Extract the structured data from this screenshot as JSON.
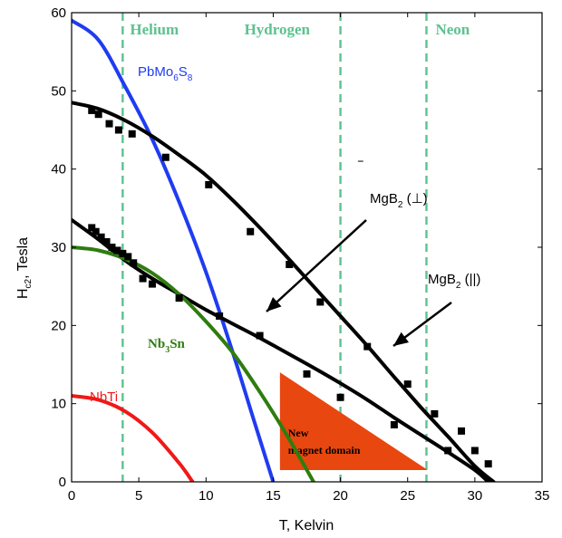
{
  "chart_data": {
    "type": "line",
    "title": "",
    "xlabel": {
      "main": "T, Kelvin"
    },
    "ylabel": {
      "main": "H",
      "sub": "c2",
      "suffix": ", Tesla"
    },
    "xlim": [
      0,
      35
    ],
    "ylim": [
      0,
      60
    ],
    "xticks": [
      0,
      5,
      10,
      15,
      20,
      25,
      30,
      35
    ],
    "yticks": [
      0,
      10,
      20,
      30,
      40,
      50,
      60
    ],
    "grid": false,
    "colors": {
      "helium": "#5cc28f",
      "blue": "#1f3cf0",
      "black": "#000000",
      "green": "#2e7d0f",
      "red": "#f01818",
      "domain": "#e8470f"
    },
    "regions": [
      {
        "label": "Helium",
        "x": 3.8
      },
      {
        "label": "Hydrogen",
        "x": 20
      },
      {
        "label": "Neon",
        "x": 26.4
      }
    ],
    "series": [
      {
        "name_main": "PbMo",
        "name_sub1": "6",
        "name_mid": "S",
        "name_sub2": "8",
        "x": [
          0,
          2,
          4,
          6,
          8,
          10,
          12,
          13.5,
          15
        ],
        "values": [
          59,
          56.5,
          50.5,
          43.8,
          35.8,
          26.8,
          16.5,
          8.2,
          0
        ]
      },
      {
        "name": "MgB2 (||) fit",
        "x": [
          0,
          2,
          4,
          6,
          8,
          10,
          12,
          14,
          16,
          18,
          20,
          22,
          24,
          26,
          28,
          30,
          31.4
        ],
        "values": [
          48.5,
          47.7,
          46.2,
          44.2,
          41.8,
          39.2,
          36.0,
          32.5,
          28.8,
          25.0,
          21.2,
          17.4,
          13.4,
          9.5,
          5.8,
          2.0,
          0
        ]
      },
      {
        "name": "MgB2 (perp) fit",
        "x": [
          0,
          2,
          4,
          6,
          8,
          10,
          12,
          14,
          16,
          18,
          20,
          22,
          24,
          26,
          28,
          30,
          31
        ],
        "values": [
          33.5,
          31.0,
          28.3,
          26.0,
          24.0,
          22.0,
          20.2,
          18.4,
          16.5,
          14.6,
          12.6,
          10.5,
          8.2,
          6.0,
          3.8,
          1.5,
          0
        ]
      },
      {
        "name_main": "Nb",
        "name_sub": "3",
        "name_tail": "Sn",
        "x": [
          0,
          2,
          4,
          6,
          8,
          10,
          12,
          14,
          16,
          18
        ],
        "values": [
          30,
          29.6,
          28.5,
          26.7,
          24.0,
          20.5,
          16.5,
          11.5,
          6.0,
          0
        ]
      },
      {
        "name": "NbTi",
        "x": [
          0,
          2,
          4,
          6,
          8,
          9
        ],
        "values": [
          11,
          10.5,
          9.0,
          6.3,
          2.4,
          0
        ]
      }
    ],
    "points_parallel": {
      "x": [
        1.5,
        2,
        2.8,
        3.5,
        4.5,
        7,
        10.2,
        13.3,
        16.2,
        18.5,
        22,
        25,
        27,
        28,
        29,
        30,
        31
      ],
      "values": [
        47.5,
        47,
        45.8,
        45,
        44.5,
        41.5,
        38,
        32,
        27.8,
        23,
        17.3,
        12.5,
        8.7,
        4,
        6.5,
        4,
        2.3
      ]
    },
    "points_perp": {
      "x": [
        1.5,
        1.8,
        2.2,
        2.6,
        3,
        3.4,
        3.8,
        4.2,
        4.6,
        5.3,
        6,
        8,
        11,
        14,
        17.5,
        20,
        24
      ],
      "values": [
        32.5,
        32,
        31.3,
        30.7,
        30,
        29.6,
        29.2,
        28.8,
        28,
        26,
        25.3,
        23.5,
        21.2,
        18.7,
        13.8,
        10.8,
        7.3
      ]
    },
    "annotations": {
      "mgb2_perp": {
        "main": "MgB",
        "sub": "2",
        "tail": " (⊥)"
      },
      "mgb2_par": {
        "main": "MgB",
        "sub": "2",
        "tail": " (||)"
      },
      "domain": {
        "line1": "New",
        "line2": "magnet domain"
      }
    }
  }
}
